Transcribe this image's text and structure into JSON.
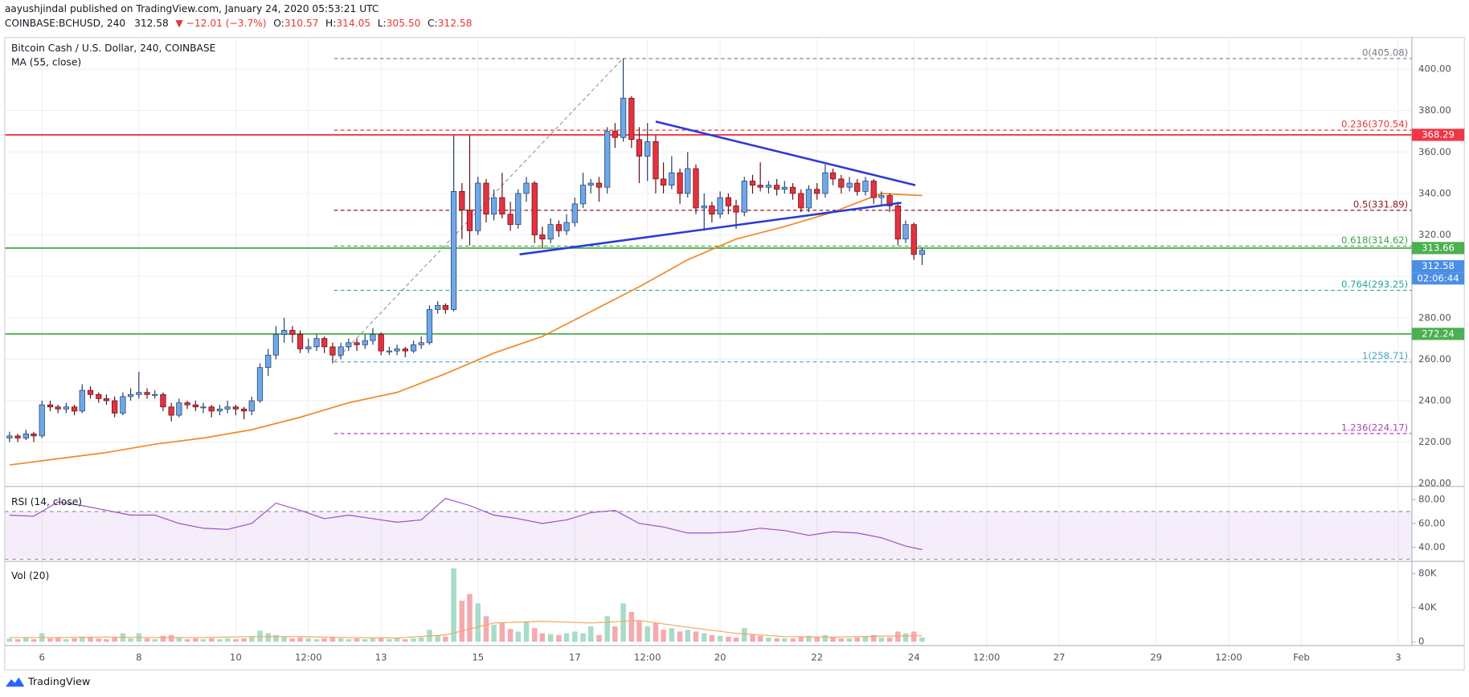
{
  "header": {
    "line1": "aayushjindal published on TradingView.com, January 24, 2020 05:53:21 UTC",
    "symbol": "COINBASE:BCHUSD, 240",
    "last": "312.58",
    "change": "▼ −12.01 (−3.7%)",
    "ohlc": [
      {
        "key": "O:",
        "value": "310.57"
      },
      {
        "key": "H:",
        "value": "314.05"
      },
      {
        "key": "L:",
        "value": "305.50"
      },
      {
        "key": "C:",
        "value": "312.58"
      }
    ]
  },
  "chart_data": {
    "type": "candlestick",
    "title": "Bitcoin Cash / U.S. Dollar, 240, COINBASE",
    "x": [
      5.33,
      5.5,
      5.67,
      5.83,
      6,
      6.17,
      6.33,
      6.5,
      6.67,
      6.83,
      7,
      7.17,
      7.33,
      7.5,
      7.67,
      7.83,
      8,
      8.17,
      8.33,
      8.5,
      8.67,
      8.83,
      9,
      9.17,
      9.33,
      9.5,
      9.67,
      9.83,
      10,
      10.17,
      10.33,
      10.5,
      10.67,
      10.83,
      11,
      11.17,
      11.33,
      11.5,
      11.67,
      11.83,
      12,
      12.17,
      12.33,
      12.5,
      12.67,
      12.83,
      13,
      13.17,
      13.33,
      13.5,
      13.67,
      13.83,
      14,
      14.17,
      14.33,
      14.5,
      14.67,
      14.83,
      15,
      15.17,
      15.33,
      15.5,
      15.67,
      15.83,
      16,
      16.17,
      16.33,
      16.5,
      16.67,
      16.83,
      17,
      17.17,
      17.33,
      17.5,
      17.67,
      17.83,
      18,
      18.17,
      18.33,
      18.5,
      18.67,
      18.83,
      19,
      19.17,
      19.33,
      19.5,
      19.67,
      19.83,
      20,
      20.17,
      20.33,
      20.5,
      20.67,
      20.83,
      21,
      21.17,
      21.33,
      21.5,
      21.67,
      21.83,
      22,
      22.17,
      22.33,
      22.5,
      22.67,
      22.83,
      23,
      23.17,
      23.33,
      23.5,
      23.67,
      23.83,
      24,
      24.17
    ],
    "ohlc": [
      [
        222,
        225,
        220,
        223
      ],
      [
        223,
        224,
        220,
        222
      ],
      [
        222,
        226,
        221,
        224
      ],
      [
        224,
        225,
        220,
        223
      ],
      [
        223,
        240,
        222,
        238
      ],
      [
        238,
        240,
        235,
        237
      ],
      [
        237,
        238,
        234,
        236
      ],
      [
        236,
        239,
        234,
        237
      ],
      [
        237,
        238,
        233,
        235
      ],
      [
        235,
        248,
        234,
        245
      ],
      [
        245,
        247,
        241,
        243
      ],
      [
        243,
        244,
        239,
        241
      ],
      [
        241,
        243,
        238,
        240
      ],
      [
        240,
        242,
        232,
        234
      ],
      [
        234,
        244,
        233,
        242
      ],
      [
        242,
        246,
        240,
        243
      ],
      [
        243,
        254,
        241,
        244
      ],
      [
        244,
        246,
        241,
        243
      ],
      [
        243,
        245,
        241,
        243
      ],
      [
        243,
        244,
        235,
        237
      ],
      [
        237,
        239,
        230,
        233
      ],
      [
        233,
        241,
        232,
        239
      ],
      [
        239,
        240,
        236,
        238
      ],
      [
        238,
        240,
        235,
        237
      ],
      [
        237,
        239,
        234,
        237
      ],
      [
        237,
        238,
        232,
        235
      ],
      [
        235,
        238,
        233,
        236
      ],
      [
        236,
        240,
        234,
        237
      ],
      [
        237,
        238,
        233,
        236
      ],
      [
        236,
        237,
        231,
        235
      ],
      [
        235,
        242,
        233,
        240
      ],
      [
        240,
        258,
        239,
        256
      ],
      [
        256,
        265,
        252,
        262
      ],
      [
        262,
        276,
        260,
        272
      ],
      [
        272,
        280,
        268,
        274
      ],
      [
        274,
        276,
        268,
        272
      ],
      [
        272,
        274,
        263,
        265
      ],
      [
        265,
        270,
        263,
        266
      ],
      [
        266,
        272,
        264,
        270
      ],
      [
        270,
        271,
        263,
        266
      ],
      [
        266,
        268,
        258,
        262
      ],
      [
        262,
        268,
        260,
        266
      ],
      [
        266,
        270,
        264,
        268
      ],
      [
        268,
        270,
        264,
        267
      ],
      [
        267,
        272,
        265,
        269
      ],
      [
        269,
        275,
        267,
        272
      ],
      [
        272,
        273,
        262,
        264
      ],
      [
        264,
        266,
        262,
        264
      ],
      [
        264,
        267,
        262,
        265
      ],
      [
        265,
        266,
        261,
        264
      ],
      [
        264,
        269,
        263,
        267
      ],
      [
        267,
        271,
        265,
        268
      ],
      [
        268,
        286,
        267,
        284
      ],
      [
        284,
        288,
        282,
        286
      ],
      [
        286,
        287,
        282,
        284
      ],
      [
        284,
        368,
        283,
        341
      ],
      [
        341,
        345,
        318,
        332
      ],
      [
        332,
        368,
        315,
        322
      ],
      [
        322,
        348,
        320,
        345
      ],
      [
        345,
        347,
        326,
        330
      ],
      [
        330,
        342,
        327,
        338
      ],
      [
        338,
        350,
        328,
        330
      ],
      [
        330,
        336,
        322,
        325
      ],
      [
        325,
        342,
        323,
        340
      ],
      [
        340,
        348,
        336,
        345
      ],
      [
        345,
        346,
        316,
        320
      ],
      [
        320,
        324,
        314,
        318
      ],
      [
        318,
        328,
        316,
        325
      ],
      [
        325,
        327,
        319,
        322
      ],
      [
        322,
        330,
        320,
        326
      ],
      [
        326,
        338,
        324,
        335
      ],
      [
        335,
        350,
        333,
        344
      ],
      [
        344,
        347,
        340,
        345
      ],
      [
        345,
        348,
        336,
        343
      ],
      [
        343,
        372,
        340,
        370
      ],
      [
        370,
        374,
        362,
        367
      ],
      [
        367,
        405.08,
        365,
        386
      ],
      [
        386,
        387,
        362,
        366
      ],
      [
        366,
        372,
        345,
        358
      ],
      [
        358,
        374,
        346,
        365
      ],
      [
        365,
        368,
        340,
        347
      ],
      [
        347,
        355,
        340,
        344
      ],
      [
        344,
        358,
        342,
        350
      ],
      [
        350,
        352,
        335,
        340
      ],
      [
        340,
        360,
        338,
        352
      ],
      [
        352,
        354,
        330,
        333
      ],
      [
        333,
        340,
        322,
        334
      ],
      [
        334,
        336,
        326,
        330
      ],
      [
        330,
        341,
        328,
        338
      ],
      [
        338,
        340,
        330,
        334
      ],
      [
        334,
        337,
        323,
        331
      ],
      [
        331,
        348,
        329,
        346
      ],
      [
        346,
        349,
        340,
        344
      ],
      [
        344,
        355,
        341,
        343
      ],
      [
        343,
        346,
        340,
        344
      ],
      [
        344,
        347,
        339,
        342
      ],
      [
        342,
        346,
        340,
        343
      ],
      [
        343,
        345,
        337,
        340
      ],
      [
        340,
        342,
        331,
        333
      ],
      [
        333,
        344,
        331,
        342
      ],
      [
        342,
        345,
        337,
        340
      ],
      [
        340,
        354,
        338,
        350
      ],
      [
        350,
        352,
        344,
        347
      ],
      [
        347,
        349,
        340,
        343
      ],
      [
        343,
        348,
        341,
        345
      ],
      [
        345,
        347,
        339,
        341
      ],
      [
        341,
        348,
        339,
        346
      ],
      [
        346,
        347,
        335,
        338
      ],
      [
        338,
        341,
        334,
        339
      ],
      [
        339,
        340,
        331,
        334
      ],
      [
        334,
        336,
        315,
        318
      ],
      [
        318,
        327,
        316,
        325
      ],
      [
        325,
        326,
        308,
        310.57
      ],
      [
        310.57,
        314.05,
        305.5,
        312.58
      ]
    ],
    "colors": {
      "up": "#6fa8e8",
      "up_edge": "#1f3b66",
      "down": "#e5323e",
      "down_edge": "#5c0c12",
      "vol_up": "#a8dcc8",
      "vol_down": "#f5aab0"
    },
    "xlim": [
      5.23,
      34.28
    ],
    "xticks": [
      6,
      8,
      10,
      {
        "value": 11.5,
        "label": "12:00"
      },
      13,
      15,
      17,
      {
        "value": 18.5,
        "label": "12:00"
      },
      20,
      22,
      24,
      {
        "value": 25.5,
        "label": "12:00"
      },
      27,
      29,
      {
        "value": 30.5,
        "label": "12:00"
      },
      {
        "value": 32,
        "label": "Feb"
      },
      {
        "value": 34,
        "label": "3"
      }
    ],
    "ylim": [
      198.6,
      415.3
    ],
    "yticks": [
      {
        "value": 200,
        "label": "200.00"
      },
      {
        "value": 220,
        "label": "220.00"
      },
      {
        "value": 240,
        "label": "240.00"
      },
      {
        "value": 260,
        "label": "260.00"
      },
      {
        "value": 280,
        "label": "280.00"
      },
      {
        "value": 300,
        "label": "300.00"
      },
      {
        "value": 320,
        "label": "320.00"
      },
      {
        "value": 340,
        "label": "340.00"
      },
      {
        "value": 360,
        "label": "360.00"
      },
      {
        "value": 380,
        "label": "380.00"
      },
      {
        "value": 400,
        "label": "400.00"
      }
    ],
    "grid": true,
    "ma": {
      "name": "MA (55, close)",
      "color": "#f08a24",
      "x": [
        5.33,
        6.33,
        7.33,
        8.33,
        9.33,
        10.33,
        11.33,
        12.33,
        13.33,
        14.33,
        15.33,
        16.33,
        17.33,
        18.33,
        19.33,
        20.33,
        21.33,
        22.33,
        23.33,
        24.17
      ],
      "values": [
        209,
        212,
        215,
        219,
        222,
        226,
        232,
        239,
        244,
        253,
        263,
        271,
        283,
        295,
        308,
        318,
        324,
        331,
        340,
        339
      ]
    },
    "fib": {
      "anchor_x": [
        12.03,
        17.99
      ],
      "anchor_y": [
        258.71,
        405.08
      ],
      "anchor_color": "#9598a1",
      "levels": [
        {
          "label": "0(405.08)",
          "value": 405.08,
          "color": "#787b86"
        },
        {
          "label": "0.236(370.54)",
          "value": 370.54,
          "color": "#e53935"
        },
        {
          "label": "0.5(331.89)",
          "value": 331.89,
          "color": "#8b1a2b"
        },
        {
          "label": "0.618(314.62)",
          "value": 314.62,
          "color": "#43a047"
        },
        {
          "label": "0.764(293.25)",
          "value": 293.25,
          "color": "#26a69a"
        },
        {
          "label": "1(258.71)",
          "value": 258.71,
          "color": "#4aa3c8"
        },
        {
          "label": "1.236(224.17)",
          "value": 224.17,
          "color": "#ab47bc"
        }
      ]
    },
    "lines": [
      {
        "value": 368.29,
        "color": "#f23645"
      },
      {
        "value": 313.66,
        "color": "#4caf50"
      },
      {
        "value": 272.24,
        "color": "#4caf50"
      }
    ],
    "trendlines": [
      {
        "x": [
          18.67,
          24.03
        ],
        "y": [
          374.7,
          344
        ],
        "color": "#2a3ad8"
      },
      {
        "x": [
          15.86,
          23.74
        ],
        "y": [
          310.6,
          335.5
        ],
        "color": "#2a3ad8"
      }
    ],
    "last_price_color": "#4a8ee6",
    "countdown": "02:06:44",
    "rsi": {
      "name": "RSI (14, close)",
      "color": "#9c4fc4",
      "x": [
        5.33,
        5.83,
        6.33,
        6.83,
        7.33,
        7.83,
        8.33,
        8.83,
        9.33,
        9.83,
        10.33,
        10.83,
        11.33,
        11.83,
        12.33,
        12.83,
        13.33,
        13.83,
        14.33,
        14.83,
        15.33,
        15.83,
        16.33,
        16.83,
        17.33,
        17.83,
        18.33,
        18.83,
        19.33,
        19.83,
        20.33,
        20.83,
        21.33,
        21.83,
        22.33,
        22.83,
        23.33,
        23.83,
        24.17
      ],
      "values": [
        67,
        66,
        78,
        75,
        71,
        67,
        67,
        60,
        56,
        55,
        60,
        77,
        71,
        64,
        67,
        64,
        61,
        63,
        81,
        75,
        67,
        64,
        60,
        63,
        69,
        71,
        60,
        57,
        52,
        52,
        53,
        56,
        54,
        50,
        53,
        52,
        48,
        41,
        38
      ],
      "ylim": [
        29.8,
        89.4
      ],
      "yticks": [
        {
          "value": 40,
          "label": "40.00"
        },
        {
          "value": 60,
          "label": "60.00"
        },
        {
          "value": 80,
          "label": "80.00"
        }
      ],
      "band": [
        30,
        70
      ]
    },
    "volume": {
      "name": "Vol (20)",
      "values": [
        4000,
        3000,
        5000,
        3000,
        10000,
        4000,
        5000,
        3000,
        4000,
        6000,
        5000,
        4000,
        3000,
        5000,
        10000,
        4000,
        10000,
        4000,
        3000,
        7000,
        8000,
        5000,
        3000,
        4000,
        3000,
        4000,
        3000,
        4000,
        3000,
        4000,
        6000,
        13000,
        10000,
        8000,
        6000,
        4000,
        5000,
        4000,
        3000,
        4000,
        5000,
        4000,
        3000,
        4000,
        3000,
        4000,
        5000,
        3000,
        4000,
        3000,
        4000,
        5000,
        14000,
        8000,
        6000,
        86000,
        48000,
        56000,
        45000,
        30000,
        20000,
        22000,
        15000,
        12000,
        24000,
        16000,
        10000,
        9000,
        8000,
        10000,
        12000,
        10000,
        18000,
        8000,
        30000,
        18000,
        45000,
        35000,
        24000,
        18000,
        22000,
        14000,
        16000,
        12000,
        14000,
        12000,
        10000,
        8000,
        7000,
        6000,
        5000,
        16000,
        9000,
        7000,
        5000,
        4000,
        4000,
        4000,
        6000,
        7000,
        5000,
        8000,
        5000,
        4000,
        4000,
        5000,
        6000,
        8000,
        5000,
        5000,
        12000,
        10000,
        12000,
        5000
      ],
      "ylim": [
        -4400,
        92000
      ],
      "yticks": [
        0,
        {
          "value": 40000,
          "label": "40K"
        },
        {
          "value": 80000,
          "label": "80K"
        }
      ],
      "ma_x": [
        5.33,
        6.33,
        7.33,
        8.33,
        9.33,
        10.33,
        11.33,
        12.33,
        13.33,
        14.33,
        15.33,
        16.33,
        17.33,
        18.33,
        19.33,
        20.33,
        21.33,
        22.33,
        23.33,
        24.17
      ],
      "ma_values": [
        5000,
        5000,
        5500,
        5000,
        5000,
        6000,
        6000,
        5000,
        4500,
        8000,
        22000,
        24000,
        22000,
        25000,
        17000,
        10000,
        6000,
        5500,
        6500,
        7000
      ],
      "ma_color": "#f5a45f"
    }
  },
  "footer": {
    "brand": "TradingView"
  }
}
